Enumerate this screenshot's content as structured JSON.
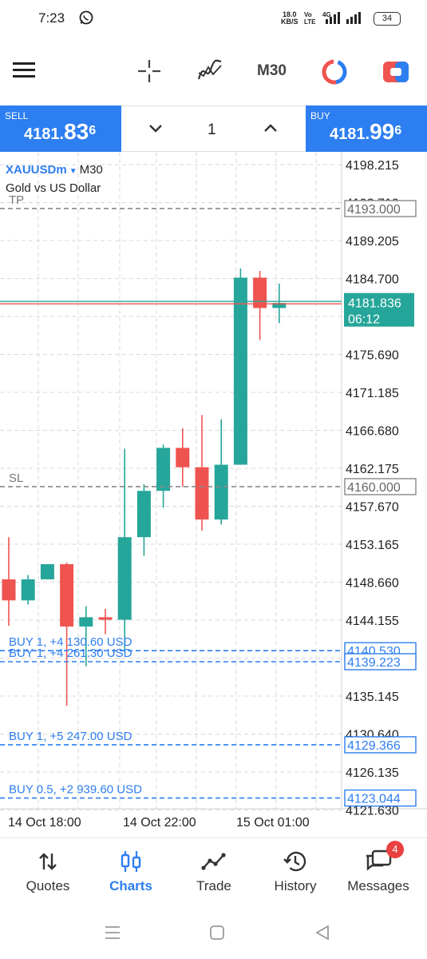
{
  "status_bar": {
    "time": "7:23",
    "speed_value": "18.0",
    "speed_unit": "KB/S",
    "network_top": "Vo",
    "network_bottom": "LTE",
    "network_type": "4G",
    "battery": "34",
    "icons": [
      "whatsapp-icon",
      "signal-icon",
      "battery-icon"
    ]
  },
  "toolbar": {
    "timeframe": "M30",
    "icons": [
      "menu-icon",
      "crosshair-icon",
      "indicators-icon",
      "objects-icon",
      "chart-settings-icon"
    ]
  },
  "trade_panel": {
    "sell_label": "SELL",
    "sell_price_main": "4181.",
    "sell_price_big": "83",
    "sell_price_sup": "6",
    "buy_label": "BUY",
    "buy_price_main": "4181.",
    "buy_price_big": "99",
    "buy_price_sup": "6",
    "volume": "1"
  },
  "chart_header": {
    "symbol": "XAUUSDm",
    "timeframe": "M30",
    "description": "Gold vs US Dollar"
  },
  "chart_data": {
    "type": "candlestick",
    "symbol": "XAUUSDm",
    "timeframe": "M30",
    "y_range": [
      4121.5,
      4201.5
    ],
    "price_axis_labels": [
      "4198.215",
      "4193.710",
      "4189.205",
      "4184.700",
      "4180.195",
      "4175.690",
      "4171.185",
      "4166.680",
      "4162.175",
      "4157.670",
      "4153.165",
      "4148.660",
      "4144.155",
      "4139.650",
      "4135.145",
      "4130.640",
      "4126.135",
      "4121.630"
    ],
    "time_labels": [
      "14 Oct 18:00",
      "14 Oct 22:00",
      "15 Oct 01:00"
    ],
    "candles": [
      {
        "o": 4149.0,
        "h": 4154.0,
        "l": 4143.5,
        "c": 4146.5
      },
      {
        "o": 4146.5,
        "h": 4149.5,
        "l": 4146.0,
        "c": 4149.0
      },
      {
        "o": 4149.0,
        "h": 4150.8,
        "l": 4149.0,
        "c": 4150.8
      },
      {
        "o": 4150.8,
        "h": 4151.0,
        "l": 4134.0,
        "c": 4143.4
      },
      {
        "o": 4143.4,
        "h": 4145.8,
        "l": 4138.7,
        "c": 4144.5
      },
      {
        "o": 4144.5,
        "h": 4145.5,
        "l": 4142.5,
        "c": 4144.2
      },
      {
        "o": 4144.2,
        "h": 4164.5,
        "l": 4140.4,
        "c": 4154.0
      },
      {
        "o": 4154.0,
        "h": 4160.3,
        "l": 4151.8,
        "c": 4159.5
      },
      {
        "o": 4159.5,
        "h": 4165.0,
        "l": 4157.5,
        "c": 4164.6
      },
      {
        "o": 4164.6,
        "h": 4166.9,
        "l": 4160.0,
        "c": 4162.3
      },
      {
        "o": 4162.3,
        "h": 4168.5,
        "l": 4154.8,
        "c": 4156.1
      },
      {
        "o": 4156.1,
        "h": 4168.0,
        "l": 4155.5,
        "c": 4162.6
      },
      {
        "o": 4162.6,
        "h": 4185.9,
        "l": 4162.6,
        "c": 4184.8
      },
      {
        "o": 4184.8,
        "h": 4185.6,
        "l": 4177.4,
        "c": 4181.2
      },
      {
        "o": 4181.2,
        "h": 4184.1,
        "l": 4179.4,
        "c": 4181.8
      }
    ],
    "current_price": {
      "value": 4181.836,
      "label": "4181.836",
      "countdown": "06:12"
    },
    "levels": [
      {
        "kind": "TP",
        "tag": "TP",
        "value": 4193.0,
        "label": "4193.000",
        "color": "#888888"
      },
      {
        "kind": "SL",
        "tag": "SL",
        "value": 4160.0,
        "label": "4160.000",
        "color": "#888888"
      },
      {
        "kind": "order",
        "tag": "BUY 1,   +4 130.60 USD",
        "value": 4140.53,
        "label": "4140.530",
        "color": "#2d7ef0"
      },
      {
        "kind": "order",
        "tag": "BUY 1,   +4 261.30 USD",
        "value": 4139.223,
        "label": "4139.223",
        "color": "#2d7ef0"
      },
      {
        "kind": "order",
        "tag": "BUY 1,   +5 247.00 USD",
        "value": 4129.366,
        "label": "4129.366",
        "color": "#2d7ef0"
      },
      {
        "kind": "order",
        "tag": "BUY 0.5,   +2 939.60 USD",
        "value": 4123.044,
        "label": "4123.044",
        "color": "#2d7ef0"
      }
    ],
    "colors": {
      "bull": "#26a69a",
      "bear": "#ef5350",
      "grid": "#d8d8d8",
      "order": "#2d7ef0"
    },
    "grid": true
  },
  "bottom_nav": {
    "items": [
      {
        "label": "Quotes",
        "icon": "quotes-icon"
      },
      {
        "label": "Charts",
        "icon": "charts-icon"
      },
      {
        "label": "Trade",
        "icon": "trade-icon"
      },
      {
        "label": "History",
        "icon": "history-icon"
      },
      {
        "label": "Messages",
        "icon": "messages-icon"
      }
    ],
    "active": "Charts",
    "messages_badge": "4"
  },
  "system_nav": {
    "icons": [
      "recents-icon",
      "home-icon",
      "back-icon"
    ]
  }
}
